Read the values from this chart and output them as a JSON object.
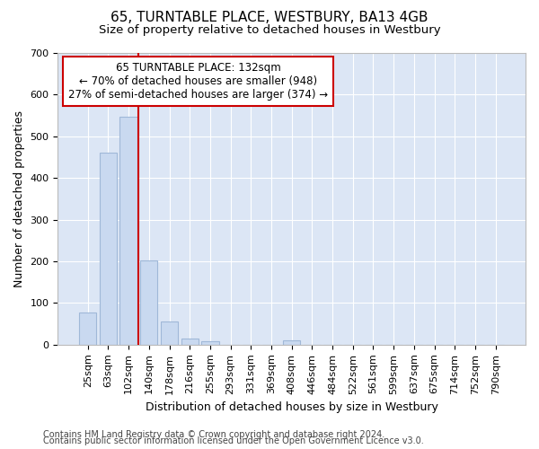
{
  "title": "65, TURNTABLE PLACE, WESTBURY, BA13 4GB",
  "subtitle": "Size of property relative to detached houses in Westbury",
  "xlabel": "Distribution of detached houses by size in Westbury",
  "ylabel": "Number of detached properties",
  "footnote1": "Contains HM Land Registry data © Crown copyright and database right 2024.",
  "footnote2": "Contains public sector information licensed under the Open Government Licence v3.0.",
  "categories": [
    "25sqm",
    "63sqm",
    "102sqm",
    "140sqm",
    "178sqm",
    "216sqm",
    "255sqm",
    "293sqm",
    "331sqm",
    "369sqm",
    "408sqm",
    "446sqm",
    "484sqm",
    "522sqm",
    "561sqm",
    "599sqm",
    "637sqm",
    "675sqm",
    "714sqm",
    "752sqm",
    "790sqm"
  ],
  "values": [
    78,
    460,
    548,
    203,
    55,
    15,
    8,
    0,
    0,
    0,
    10,
    0,
    0,
    0,
    0,
    0,
    0,
    0,
    0,
    0,
    0
  ],
  "bar_color": "#c9d9f0",
  "bar_edge_color": "#a0b8d8",
  "vline_x_index": 2,
  "vline_color": "#cc0000",
  "annotation_line1": "65 TURNTABLE PLACE: 132sqm",
  "annotation_line2": "← 70% of detached houses are smaller (948)",
  "annotation_line3": "27% of semi-detached houses are larger (374) →",
  "annotation_box_color": "#cc0000",
  "ylim": [
    0,
    700
  ],
  "yticks": [
    0,
    100,
    200,
    300,
    400,
    500,
    600,
    700
  ],
  "fig_bg_color": "#ffffff",
  "axes_bg_color": "#dce6f5",
  "grid_color": "#ffffff",
  "title_fontsize": 11,
  "subtitle_fontsize": 9.5,
  "label_fontsize": 9,
  "tick_fontsize": 8,
  "footnote_fontsize": 7
}
